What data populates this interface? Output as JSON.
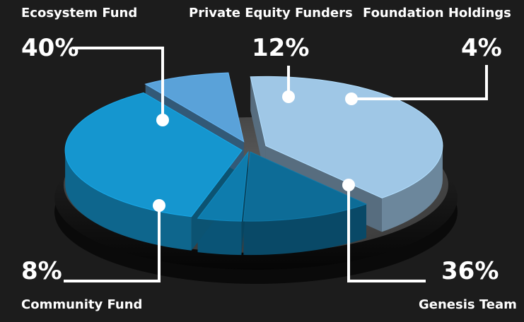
{
  "chart_data": {
    "type": "pie",
    "style": "3d-exploded",
    "series": [
      {
        "name": "Ecosystem Fund",
        "value": 40,
        "label": "40%",
        "color": "#9fc7e6"
      },
      {
        "name": "Private Equity Funders",
        "value": 12,
        "label": "12%",
        "color": "#0d6c97"
      },
      {
        "name": "Foundation Holdings",
        "value": 4,
        "label": "4%",
        "color": "#0e7cad"
      },
      {
        "name": "Genesis Team",
        "value": 36,
        "label": "36%",
        "color": "#1596cf"
      },
      {
        "name": "Community Fund",
        "value": 8,
        "label": "8%",
        "color": "#5aa2d9"
      }
    ]
  }
}
